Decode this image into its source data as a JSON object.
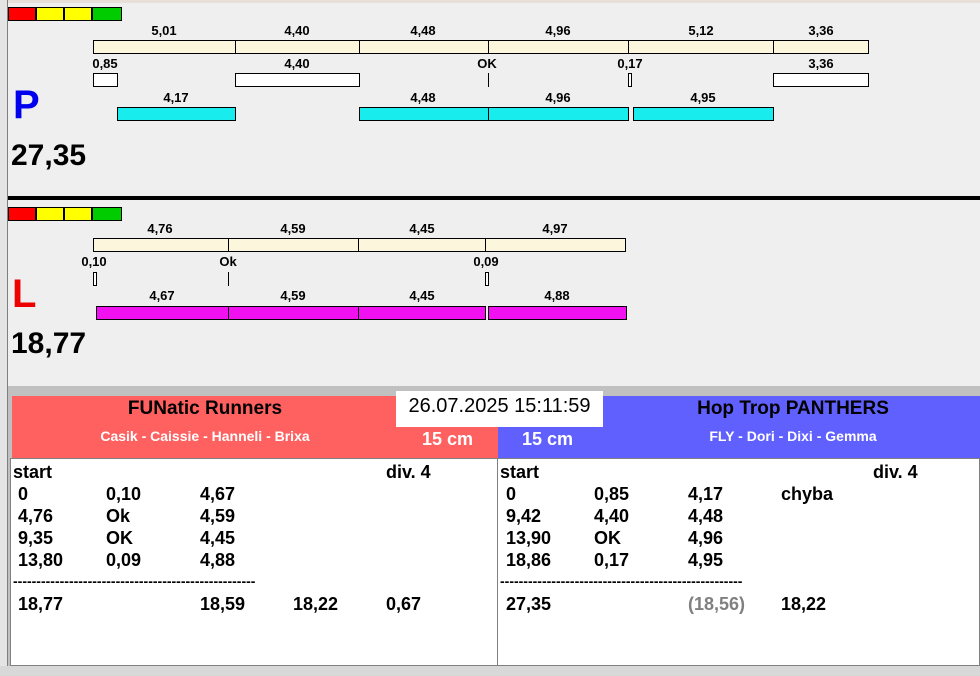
{
  "signal_colors": [
    "#ff0000",
    "#ffff00",
    "#ffff00",
    "#00cc00"
  ],
  "panel_p": {
    "letter": "P",
    "letter_color": "#0000ee",
    "total": "27,35",
    "row1_labels": [
      "5,01",
      "4,40",
      "4,48",
      "4,96",
      "5,12",
      "3,36"
    ],
    "row2_labels": [
      "0,85",
      "4,40",
      "OK",
      "0,17",
      "3,36"
    ],
    "row3_labels": [
      "4,17",
      "4,48",
      "4,96",
      "4,95"
    ]
  },
  "panel_l": {
    "letter": "L",
    "letter_color": "#ee0000",
    "total": "18,77",
    "row1_labels": [
      "4,76",
      "4,59",
      "4,45",
      "4,97"
    ],
    "row2_labels": [
      "0,10",
      "Ok",
      "0,09"
    ],
    "row3_labels": [
      "4,67",
      "4,59",
      "4,45",
      "4,88"
    ]
  },
  "datetime": "26.07.2025 15:11:59",
  "team_left": {
    "name": "FUNatic Runners",
    "members": "Casik - Caissie - Hanneli - Brixa",
    "cm": "15 cm",
    "color": "#ff6060"
  },
  "team_right": {
    "name": "Hop Trop PANTHERS",
    "members": "FLY - Dori - Dixi - Gemma",
    "cm": "15 cm",
    "color": "#6060ff"
  },
  "table_left": {
    "start": "start",
    "div": "div.  4",
    "rows": [
      [
        "0",
        "0,10",
        "4,67",
        ""
      ],
      [
        "4,76",
        "Ok",
        "4,59",
        ""
      ],
      [
        "9,35",
        "OK",
        "4,45",
        ""
      ],
      [
        "13,80",
        "0,09",
        "4,88",
        ""
      ]
    ],
    "dashes": "----------------------------------------------------",
    "summary": [
      "18,77",
      "18,59",
      "18,22",
      "0,67"
    ]
  },
  "table_right": {
    "start": "start",
    "div": "div.  4",
    "rows": [
      [
        "0",
        "0,85",
        "4,17",
        "chyba"
      ],
      [
        "9,42",
        "4,40",
        "4,48",
        ""
      ],
      [
        "13,90",
        "OK",
        "4,96",
        ""
      ],
      [
        "18,86",
        "0,17",
        "4,95",
        ""
      ]
    ],
    "dashes": "----------------------------------------------------",
    "summary": [
      "27,35",
      "(18,56)",
      "18,22"
    ]
  }
}
